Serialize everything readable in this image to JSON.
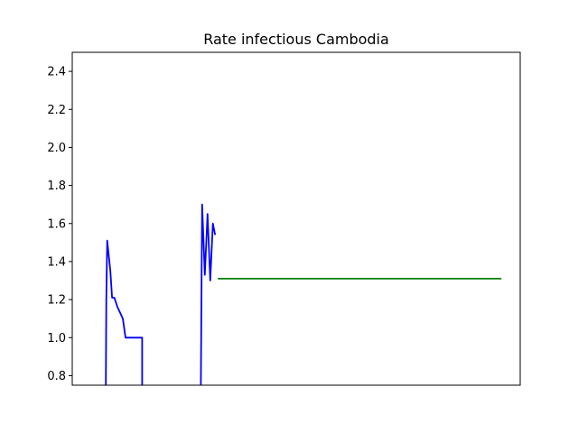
{
  "chart_data": {
    "type": "line",
    "title": "Rate infectious Cambodia",
    "xlabel": "",
    "ylabel": "",
    "xlim": [
      0,
      100
    ],
    "ylim": [
      0.75,
      2.5
    ],
    "yticks": [
      0.8,
      1.0,
      1.2,
      1.4,
      1.6,
      1.8,
      2.0,
      2.2,
      2.4
    ],
    "ytick_labels": [
      "0.8",
      "1.0",
      "1.2",
      "1.4",
      "1.6",
      "1.8",
      "2.0",
      "2.2",
      "2.4"
    ],
    "xticks_shown": false,
    "grid": false,
    "legend": "none",
    "series": [
      {
        "color": "#0000ff",
        "segments": [
          [
            [
              7.5,
              0.75
            ],
            [
              7.6,
              1.2
            ],
            [
              7.8,
              1.51
            ],
            [
              8.5,
              1.35
            ],
            [
              8.9,
              1.21
            ],
            [
              9.4,
              1.21
            ],
            [
              10.1,
              1.16
            ],
            [
              10.7,
              1.13
            ],
            [
              11.3,
              1.1
            ],
            [
              11.9,
              1.0
            ],
            [
              12.5,
              1.0
            ],
            [
              14.4,
              1.0
            ],
            [
              15.6,
              1.0
            ],
            [
              15.6,
              0.75
            ]
          ],
          [
            [
              28.7,
              0.75
            ],
            [
              29.0,
              1.7
            ],
            [
              29.6,
              1.33
            ],
            [
              30.2,
              1.65
            ],
            [
              30.8,
              1.3
            ],
            [
              31.4,
              1.6
            ],
            [
              31.9,
              1.54
            ]
          ]
        ]
      },
      {
        "color": "#008000",
        "segments": [
          [
            [
              32.5,
              1.31
            ],
            [
              95.8,
              1.31
            ]
          ]
        ]
      }
    ]
  }
}
